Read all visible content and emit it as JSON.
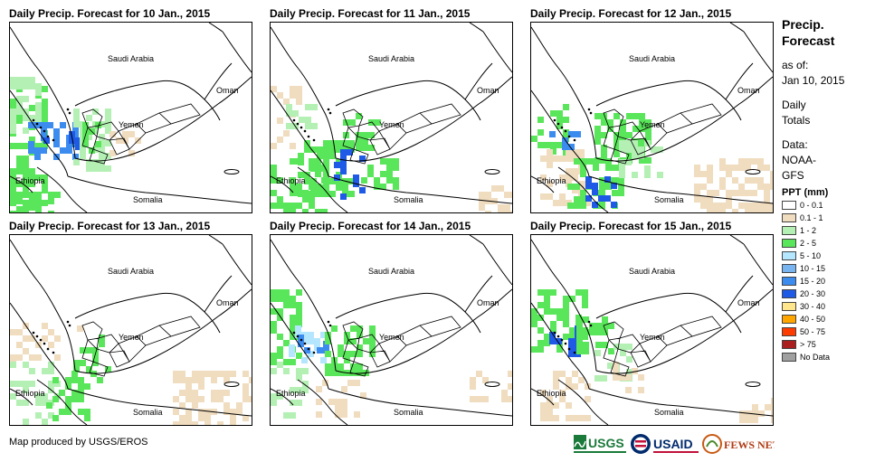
{
  "panels": [
    {
      "id": "p1",
      "title": "Daily Precip. Forecast for 10 Jan., 2015"
    },
    {
      "id": "p2",
      "title": "Daily Precip. Forecast for 11 Jan., 2015"
    },
    {
      "id": "p3",
      "title": "Daily Precip. Forecast for 12 Jan., 2015"
    },
    {
      "id": "p4",
      "title": "Daily Precip. Forecast for 13 Jan., 2015"
    },
    {
      "id": "p5",
      "title": "Daily Precip. Forecast for 14 Jan., 2015"
    },
    {
      "id": "p6",
      "title": "Daily Precip. Forecast for 15 Jan., 2015"
    }
  ],
  "map_labels": {
    "saudi": "Saudi Arabia",
    "oman": "Oman",
    "yemen": "Yemen",
    "ethiopia": "Ethiopia",
    "somalia": "Somalia"
  },
  "legend": {
    "title_line1": "Precip.",
    "title_line2": "Forecast",
    "asof_line1": "as of:",
    "asof_line2": "Jan 10, 2015",
    "daily_line1": "Daily",
    "daily_line2": "Totals",
    "data_line1": "Data:",
    "data_line2": "NOAA-",
    "data_line3": "GFS",
    "ppt_title": "PPT (mm)",
    "items": [
      {
        "label": "0 - 0.1",
        "color": "#ffffff"
      },
      {
        "label": "0.1 - 1",
        "color": "#f0dcbe"
      },
      {
        "label": "1 - 2",
        "color": "#b4f0b4"
      },
      {
        "label": "2 - 5",
        "color": "#5ae65a"
      },
      {
        "label": "5 - 10",
        "color": "#b4e6ff"
      },
      {
        "label": "10 - 15",
        "color": "#78b4f0"
      },
      {
        "label": "15 - 20",
        "color": "#3c8cf0"
      },
      {
        "label": "20 - 30",
        "color": "#1e5ae6"
      },
      {
        "label": "30 - 40",
        "color": "#ffe68c"
      },
      {
        "label": "40 - 50",
        "color": "#ffa500"
      },
      {
        "label": "50 - 75",
        "color": "#ff3c00"
      },
      {
        "label": "> 75",
        "color": "#aa1e1e"
      },
      {
        "label": "No Data",
        "color": "#a0a0a0"
      }
    ]
  },
  "credit": "Map produced by USGS/EROS",
  "logos": {
    "usgs": "USGS",
    "usaid": "USAID",
    "fewsnet": "FEWS NET"
  }
}
